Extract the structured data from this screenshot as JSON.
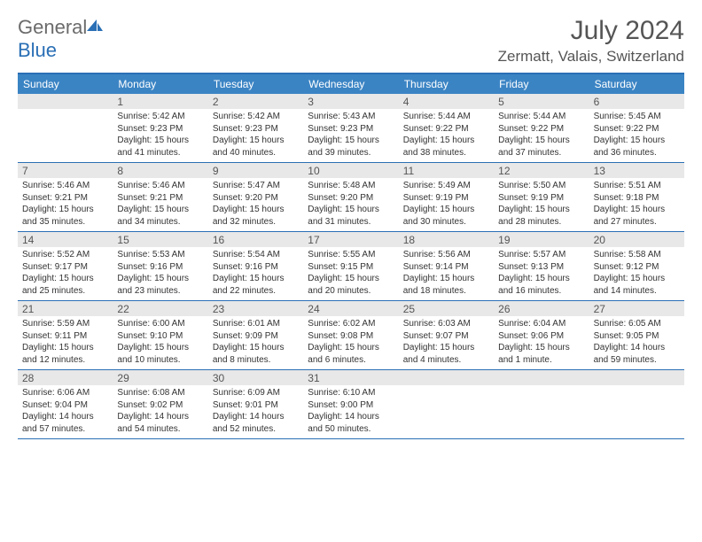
{
  "logo": {
    "word1": "General",
    "word2": "Blue"
  },
  "title": "July 2024",
  "location": "Zermatt, Valais, Switzerland",
  "colors": {
    "header_bg": "#3b84c4",
    "border": "#2a6fb5",
    "daynum_bg": "#e8e8e8",
    "text": "#333333",
    "title_text": "#555555"
  },
  "day_headers": [
    "Sunday",
    "Monday",
    "Tuesday",
    "Wednesday",
    "Thursday",
    "Friday",
    "Saturday"
  ],
  "start_offset": 1,
  "days": [
    {
      "n": 1,
      "sr": "5:42 AM",
      "ss": "9:23 PM",
      "dl": "15 hours and 41 minutes."
    },
    {
      "n": 2,
      "sr": "5:42 AM",
      "ss": "9:23 PM",
      "dl": "15 hours and 40 minutes."
    },
    {
      "n": 3,
      "sr": "5:43 AM",
      "ss": "9:23 PM",
      "dl": "15 hours and 39 minutes."
    },
    {
      "n": 4,
      "sr": "5:44 AM",
      "ss": "9:22 PM",
      "dl": "15 hours and 38 minutes."
    },
    {
      "n": 5,
      "sr": "5:44 AM",
      "ss": "9:22 PM",
      "dl": "15 hours and 37 minutes."
    },
    {
      "n": 6,
      "sr": "5:45 AM",
      "ss": "9:22 PM",
      "dl": "15 hours and 36 minutes."
    },
    {
      "n": 7,
      "sr": "5:46 AM",
      "ss": "9:21 PM",
      "dl": "15 hours and 35 minutes."
    },
    {
      "n": 8,
      "sr": "5:46 AM",
      "ss": "9:21 PM",
      "dl": "15 hours and 34 minutes."
    },
    {
      "n": 9,
      "sr": "5:47 AM",
      "ss": "9:20 PM",
      "dl": "15 hours and 32 minutes."
    },
    {
      "n": 10,
      "sr": "5:48 AM",
      "ss": "9:20 PM",
      "dl": "15 hours and 31 minutes."
    },
    {
      "n": 11,
      "sr": "5:49 AM",
      "ss": "9:19 PM",
      "dl": "15 hours and 30 minutes."
    },
    {
      "n": 12,
      "sr": "5:50 AM",
      "ss": "9:19 PM",
      "dl": "15 hours and 28 minutes."
    },
    {
      "n": 13,
      "sr": "5:51 AM",
      "ss": "9:18 PM",
      "dl": "15 hours and 27 minutes."
    },
    {
      "n": 14,
      "sr": "5:52 AM",
      "ss": "9:17 PM",
      "dl": "15 hours and 25 minutes."
    },
    {
      "n": 15,
      "sr": "5:53 AM",
      "ss": "9:16 PM",
      "dl": "15 hours and 23 minutes."
    },
    {
      "n": 16,
      "sr": "5:54 AM",
      "ss": "9:16 PM",
      "dl": "15 hours and 22 minutes."
    },
    {
      "n": 17,
      "sr": "5:55 AM",
      "ss": "9:15 PM",
      "dl": "15 hours and 20 minutes."
    },
    {
      "n": 18,
      "sr": "5:56 AM",
      "ss": "9:14 PM",
      "dl": "15 hours and 18 minutes."
    },
    {
      "n": 19,
      "sr": "5:57 AM",
      "ss": "9:13 PM",
      "dl": "15 hours and 16 minutes."
    },
    {
      "n": 20,
      "sr": "5:58 AM",
      "ss": "9:12 PM",
      "dl": "15 hours and 14 minutes."
    },
    {
      "n": 21,
      "sr": "5:59 AM",
      "ss": "9:11 PM",
      "dl": "15 hours and 12 minutes."
    },
    {
      "n": 22,
      "sr": "6:00 AM",
      "ss": "9:10 PM",
      "dl": "15 hours and 10 minutes."
    },
    {
      "n": 23,
      "sr": "6:01 AM",
      "ss": "9:09 PM",
      "dl": "15 hours and 8 minutes."
    },
    {
      "n": 24,
      "sr": "6:02 AM",
      "ss": "9:08 PM",
      "dl": "15 hours and 6 minutes."
    },
    {
      "n": 25,
      "sr": "6:03 AM",
      "ss": "9:07 PM",
      "dl": "15 hours and 4 minutes."
    },
    {
      "n": 26,
      "sr": "6:04 AM",
      "ss": "9:06 PM",
      "dl": "15 hours and 1 minute."
    },
    {
      "n": 27,
      "sr": "6:05 AM",
      "ss": "9:05 PM",
      "dl": "14 hours and 59 minutes."
    },
    {
      "n": 28,
      "sr": "6:06 AM",
      "ss": "9:04 PM",
      "dl": "14 hours and 57 minutes."
    },
    {
      "n": 29,
      "sr": "6:08 AM",
      "ss": "9:02 PM",
      "dl": "14 hours and 54 minutes."
    },
    {
      "n": 30,
      "sr": "6:09 AM",
      "ss": "9:01 PM",
      "dl": "14 hours and 52 minutes."
    },
    {
      "n": 31,
      "sr": "6:10 AM",
      "ss": "9:00 PM",
      "dl": "14 hours and 50 minutes."
    }
  ],
  "labels": {
    "sunrise": "Sunrise:",
    "sunset": "Sunset:",
    "daylight": "Daylight:"
  }
}
